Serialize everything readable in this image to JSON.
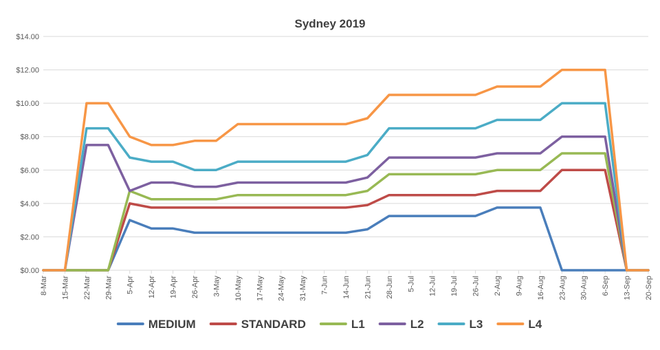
{
  "chart_data": {
    "type": "line",
    "title": "Sydney 2019",
    "xlabel": "",
    "ylabel": "",
    "ylim": [
      0,
      14
    ],
    "yticks": [
      "$0.00",
      "$2.00",
      "$4.00",
      "$6.00",
      "$8.00",
      "$10.00",
      "$12.00",
      "$14.00"
    ],
    "grid": true,
    "legend_position": "bottom",
    "categories": [
      "8-Mar",
      "15-Mar",
      "22-Mar",
      "29-Mar",
      "5-Apr",
      "12-Apr",
      "19-Apr",
      "26-Apr",
      "3-May",
      "10-May",
      "17-May",
      "24-May",
      "31-May",
      "7-Jun",
      "14-Jun",
      "21-Jun",
      "28-Jun",
      "5-Jul",
      "12-Jul",
      "19-Jul",
      "26-Jul",
      "2-Aug",
      "9-Aug",
      "16-Aug",
      "23-Aug",
      "30-Aug",
      "6-Sep",
      "13-Sep",
      "20-Sep"
    ],
    "series": [
      {
        "name": "MEDIUM",
        "color": "#4A7EBB",
        "values": [
          0,
          0,
          0,
          0,
          3,
          2.5,
          2.5,
          2.25,
          2.25,
          2.25,
          2.25,
          2.25,
          2.25,
          2.25,
          2.25,
          2.45,
          3.25,
          3.25,
          3.25,
          3.25,
          3.25,
          3.75,
          3.75,
          3.75,
          0,
          0,
          0,
          0,
          0
        ]
      },
      {
        "name": "STANDARD",
        "color": "#BE4B48",
        "values": [
          0,
          0,
          0,
          0,
          4,
          3.75,
          3.75,
          3.75,
          3.75,
          3.75,
          3.75,
          3.75,
          3.75,
          3.75,
          3.75,
          3.9,
          4.5,
          4.5,
          4.5,
          4.5,
          4.5,
          4.75,
          4.75,
          4.75,
          6,
          6,
          6,
          0,
          0
        ]
      },
      {
        "name": "L1",
        "color": "#98B954",
        "values": [
          0,
          0,
          0,
          0,
          4.75,
          4.25,
          4.25,
          4.25,
          4.25,
          4.5,
          4.5,
          4.5,
          4.5,
          4.5,
          4.5,
          4.75,
          5.75,
          5.75,
          5.75,
          5.75,
          5.75,
          6,
          6,
          6,
          7,
          7,
          7,
          0,
          0
        ]
      },
      {
        "name": "L2",
        "color": "#7D60A0",
        "values": [
          0,
          0,
          7.5,
          7.5,
          4.75,
          5.25,
          5.25,
          5,
          5,
          5.25,
          5.25,
          5.25,
          5.25,
          5.25,
          5.25,
          5.55,
          6.75,
          6.75,
          6.75,
          6.75,
          6.75,
          7,
          7,
          7,
          8,
          8,
          8,
          0,
          0
        ]
      },
      {
        "name": "L3",
        "color": "#4BACC6",
        "values": [
          0,
          0,
          8.5,
          8.5,
          6.75,
          6.5,
          6.5,
          6,
          6,
          6.5,
          6.5,
          6.5,
          6.5,
          6.5,
          6.5,
          6.9,
          8.5,
          8.5,
          8.5,
          8.5,
          8.5,
          9,
          9,
          9,
          10,
          10,
          10,
          0,
          0
        ]
      },
      {
        "name": "L4",
        "color": "#F79646",
        "values": [
          0,
          0,
          10,
          10,
          8,
          7.5,
          7.5,
          7.75,
          7.75,
          8.75,
          8.75,
          8.75,
          8.75,
          8.75,
          8.75,
          9.1,
          10.5,
          10.5,
          10.5,
          10.5,
          10.5,
          11,
          11,
          11,
          12,
          12,
          12,
          0,
          0
        ]
      }
    ]
  },
  "colors": {
    "grid": "#D9D9D9",
    "text": "#595959",
    "title": "#404040"
  }
}
